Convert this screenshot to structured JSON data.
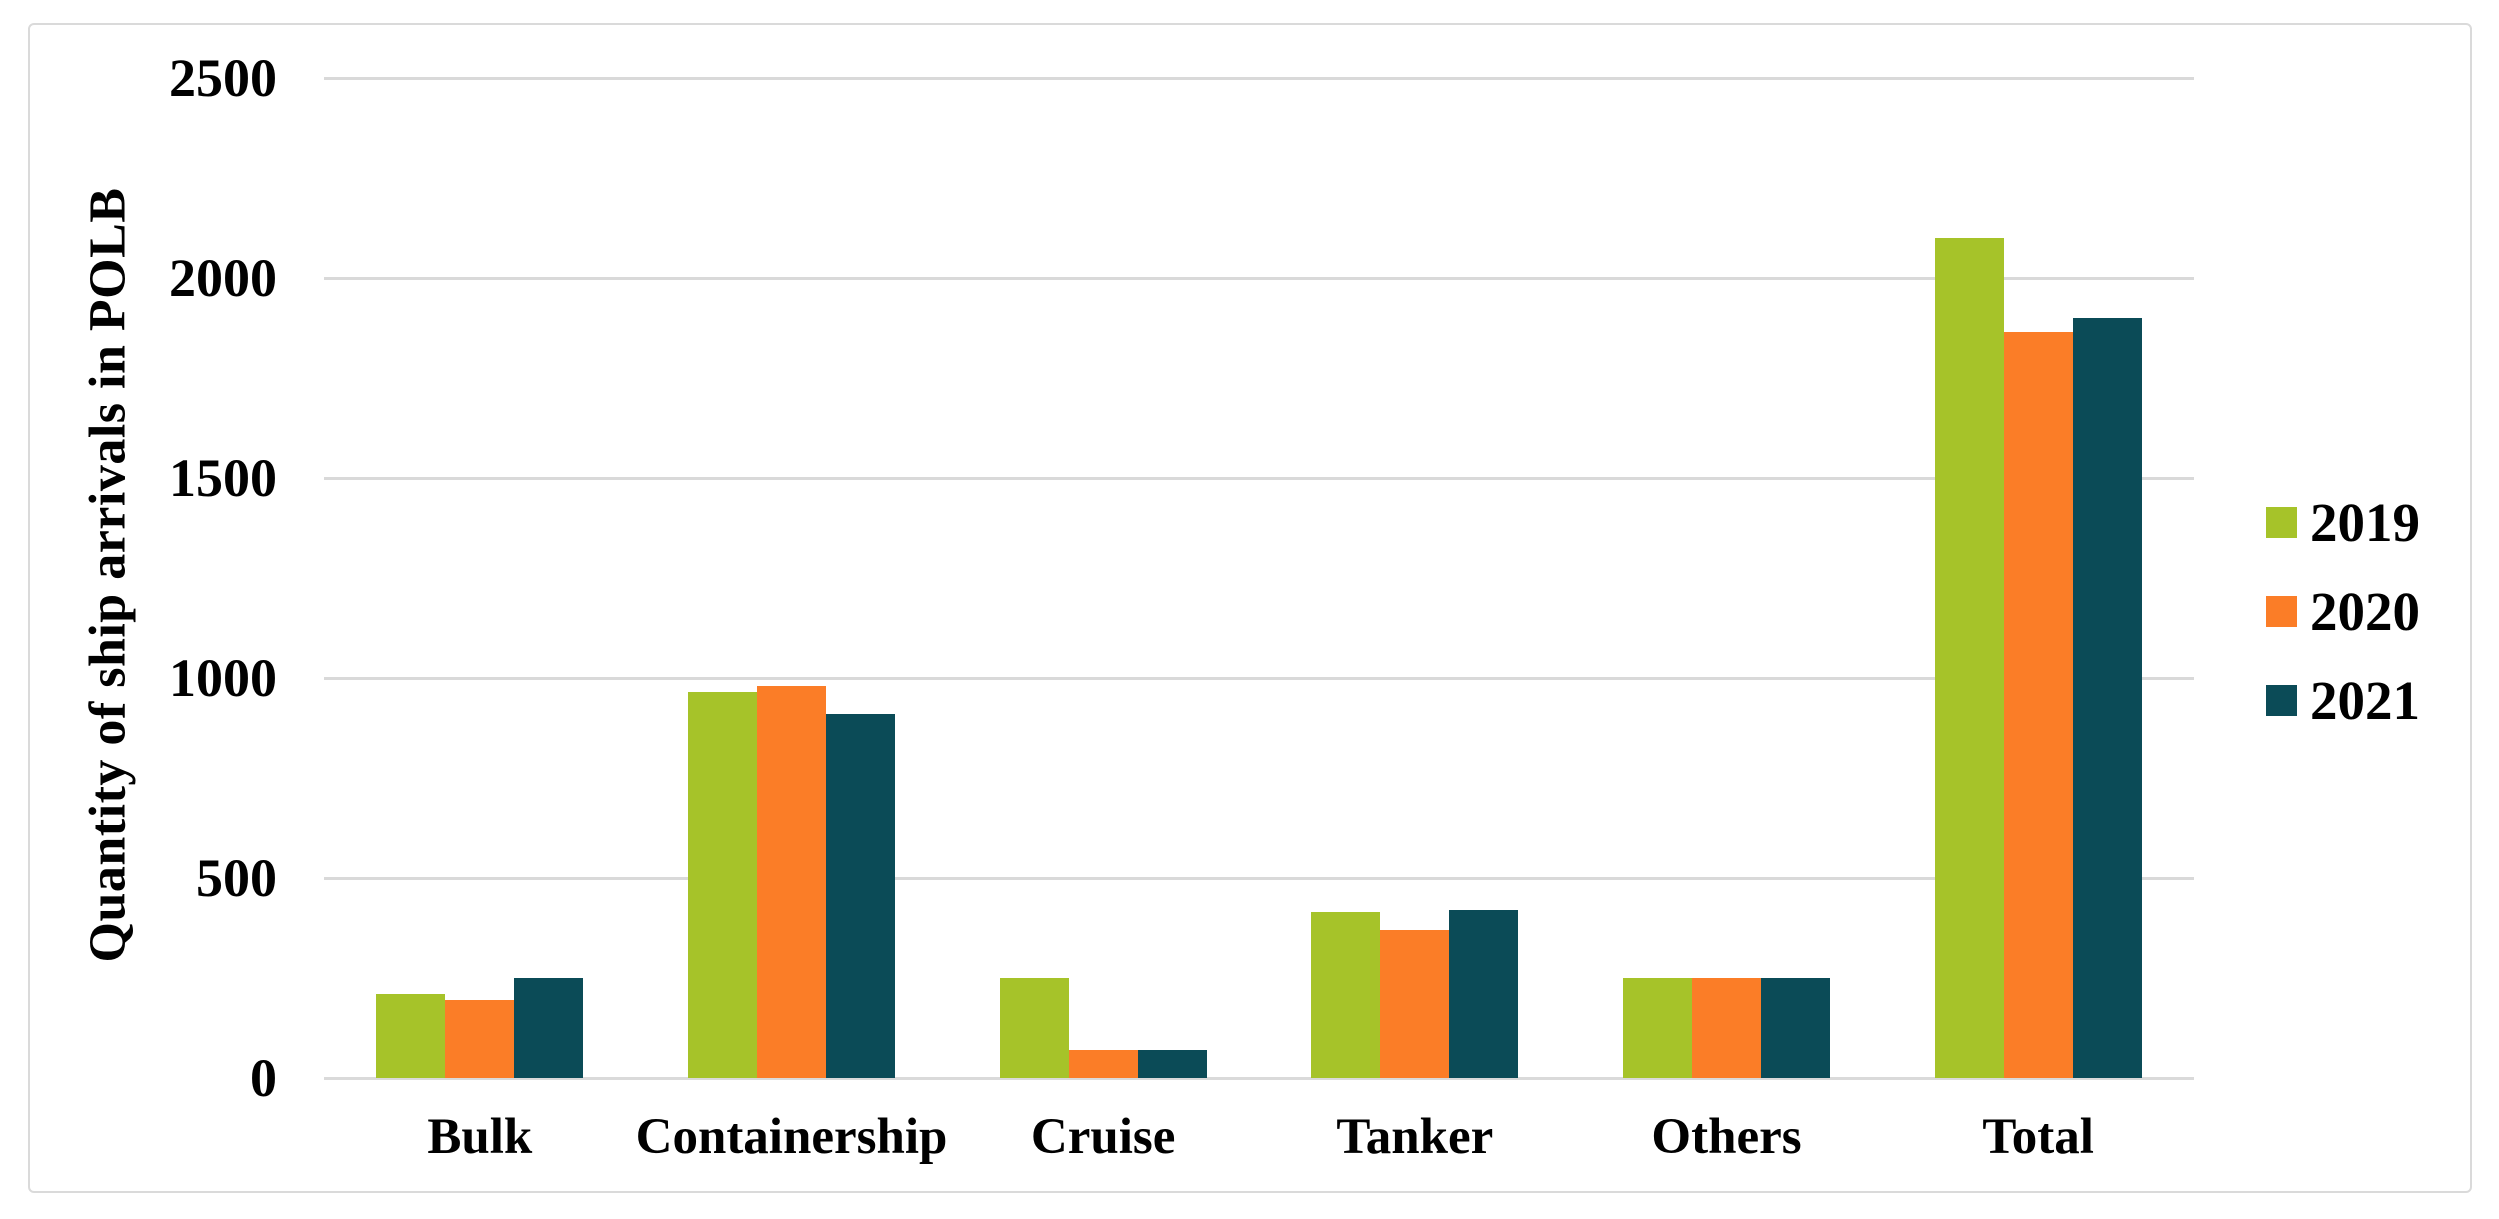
{
  "chart_data": {
    "type": "bar",
    "title": "",
    "xlabel": "",
    "ylabel": "Quantity of ship arrivals in POLB",
    "categories": [
      "Bulk",
      "Containership",
      "Cruise",
      "Tanker",
      "Others",
      "Total"
    ],
    "series": [
      {
        "name": "2019",
        "color": "#a6c329",
        "values": [
          210,
          965,
          250,
          415,
          250,
          2100
        ]
      },
      {
        "name": "2020",
        "color": "#fb7d27",
        "values": [
          195,
          980,
          70,
          370,
          250,
          1865
        ]
      },
      {
        "name": "2021",
        "color": "#0b4b57",
        "values": [
          250,
          910,
          70,
          420,
          250,
          1900
        ]
      }
    ],
    "ylim": [
      0,
      2500
    ],
    "yticks": [
      0,
      500,
      1000,
      1500,
      2000,
      2500
    ],
    "grid": true,
    "legend_position": "right",
    "gridline_color": "#d9d9d9",
    "frame_border_color": "#dadada",
    "text_color": "#000000"
  }
}
